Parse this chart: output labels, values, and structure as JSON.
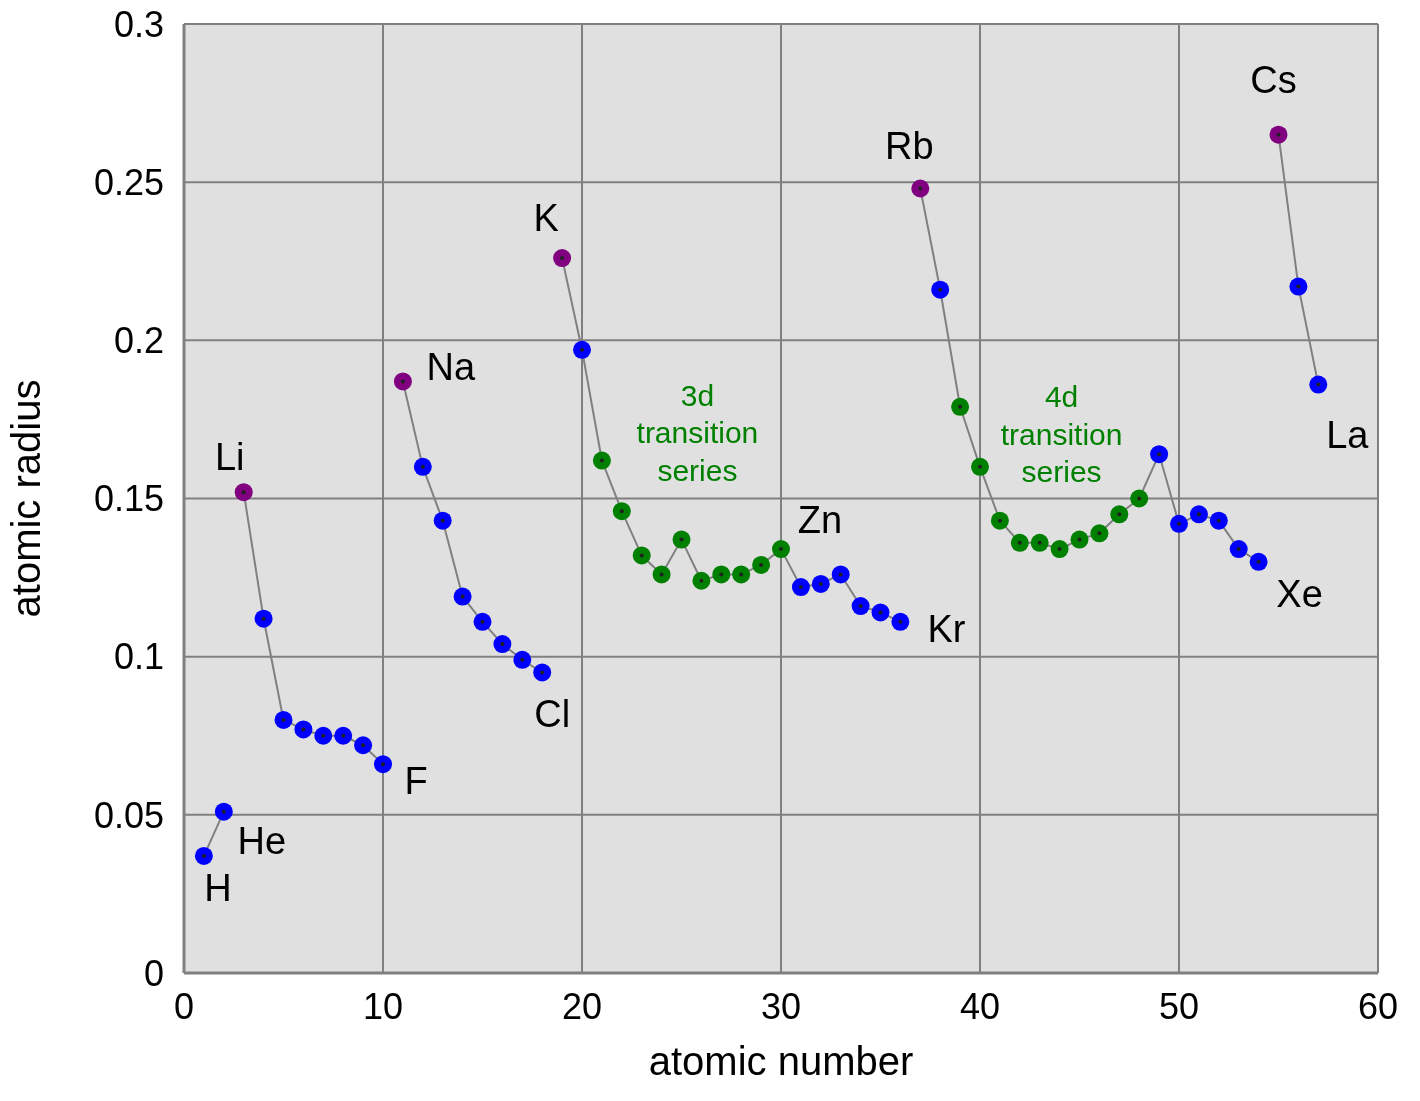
{
  "chart_data": {
    "type": "line",
    "xlabel": "atomic number",
    "ylabel": "atomic radius",
    "xlim": [
      0,
      60
    ],
    "xticks": [
      0,
      10,
      20,
      30,
      40,
      50,
      60
    ],
    "ylim": [
      0,
      0.3
    ],
    "yticks": [
      0,
      0.05,
      0.1,
      0.15,
      0.2,
      0.25,
      0.3
    ],
    "grid": true,
    "marker": "circle",
    "line_style": "solid",
    "legend": false,
    "series": [
      {
        "color": "#808080",
        "x": [
          1,
          2
        ],
        "values": [
          0.037,
          0.051
        ],
        "colors": [
          "#0000ff",
          "#0000ff"
        ]
      },
      {
        "color": "#808080",
        "x": [
          3,
          4,
          5,
          6,
          7,
          8,
          9,
          10
        ],
        "values": [
          0.152,
          0.112,
          0.08,
          0.077,
          0.075,
          0.075,
          0.072,
          0.066
        ],
        "colors": [
          "#800080",
          "#0000ff",
          "#0000ff",
          "#0000ff",
          "#0000ff",
          "#0000ff",
          "#0000ff",
          "#0000ff"
        ]
      },
      {
        "color": "#808080",
        "x": [
          11,
          12,
          13,
          14,
          15,
          16,
          17,
          18
        ],
        "values": [
          0.187,
          0.16,
          0.143,
          0.119,
          0.111,
          0.104,
          0.099,
          0.095
        ],
        "colors": [
          "#800080",
          "#0000ff",
          "#0000ff",
          "#0000ff",
          "#0000ff",
          "#0000ff",
          "#0000ff",
          "#0000ff"
        ]
      },
      {
        "color": "#808080",
        "x": [
          19,
          20,
          21,
          22,
          23,
          24,
          25,
          26,
          27,
          28,
          29,
          30,
          31,
          32,
          33,
          34,
          35,
          36
        ],
        "values": [
          0.226,
          0.197,
          0.162,
          0.146,
          0.132,
          0.126,
          0.137,
          0.124,
          0.126,
          0.126,
          0.129,
          0.134,
          0.122,
          0.123,
          0.126,
          0.116,
          0.114,
          0.111
        ],
        "colors": [
          "#800080",
          "#0000ff",
          "#008000",
          "#008000",
          "#008000",
          "#008000",
          "#008000",
          "#008000",
          "#008000",
          "#008000",
          "#008000",
          "#008000",
          "#0000ff",
          "#0000ff",
          "#0000ff",
          "#0000ff",
          "#0000ff",
          "#0000ff"
        ]
      },
      {
        "color": "#808080",
        "x": [
          37,
          38,
          39,
          40,
          41,
          42,
          43,
          44,
          45,
          46,
          47,
          48,
          49,
          50,
          51,
          52,
          53,
          54
        ],
        "values": [
          0.248,
          0.216,
          0.179,
          0.16,
          0.143,
          0.136,
          0.136,
          0.134,
          0.137,
          0.139,
          0.145,
          0.15,
          0.164,
          0.142,
          0.145,
          0.143,
          0.134,
          0.13
        ],
        "colors": [
          "#800080",
          "#0000ff",
          "#008000",
          "#008000",
          "#008000",
          "#008000",
          "#008000",
          "#008000",
          "#008000",
          "#008000",
          "#008000",
          "#008000",
          "#0000ff",
          "#0000ff",
          "#0000ff",
          "#0000ff",
          "#0000ff",
          "#0000ff"
        ]
      },
      {
        "color": "#808080",
        "x": [
          55,
          56,
          57
        ],
        "values": [
          0.265,
          0.217,
          0.186
        ],
        "colors": [
          "#800080",
          "#0000ff",
          "#0000ff"
        ]
      }
    ],
    "annotations": [
      {
        "text": "H",
        "x": 1,
        "y": 0.037
      },
      {
        "text": "He",
        "x": 2,
        "y": 0.051
      },
      {
        "text": "Li",
        "x": 3,
        "y": 0.152
      },
      {
        "text": "F",
        "x": 10,
        "y": 0.066
      },
      {
        "text": "Na",
        "x": 11,
        "y": 0.187
      },
      {
        "text": "Cl",
        "x": 18,
        "y": 0.095
      },
      {
        "text": "K",
        "x": 19,
        "y": 0.226
      },
      {
        "text": "Zn",
        "x": 30,
        "y": 0.134
      },
      {
        "text": "Kr",
        "x": 36,
        "y": 0.111
      },
      {
        "text": "Rb",
        "x": 37,
        "y": 0.248
      },
      {
        "text": "Xe",
        "x": 54,
        "y": 0.13
      },
      {
        "text": "Cs",
        "x": 55,
        "y": 0.265
      },
      {
        "text": "La",
        "x": 57,
        "y": 0.186
      },
      "3d\ntransition\nseries",
      "4d\ntransition\nseries"
    ]
  }
}
